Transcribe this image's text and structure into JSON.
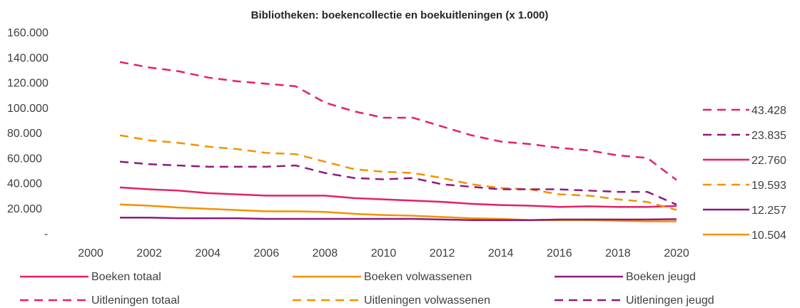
{
  "chart_data": {
    "type": "line",
    "title": "Bibliotheken:  boekencollectie  en boekuitleningen  (x 1.000)",
    "x": [
      2001,
      2002,
      2003,
      2004,
      2005,
      2006,
      2007,
      2008,
      2009,
      2010,
      2011,
      2012,
      2013,
      2014,
      2015,
      2016,
      2017,
      2018,
      2019,
      2020
    ],
    "xlim": [
      2000,
      2020
    ],
    "xticks": [
      2000,
      2002,
      2004,
      2006,
      2008,
      2010,
      2012,
      2014,
      2016,
      2018,
      2020
    ],
    "ylim": [
      0,
      160000
    ],
    "yticks": [
      {
        "value": 0,
        "label": "-"
      },
      {
        "value": 20000,
        "label": "20.000"
      },
      {
        "value": 40000,
        "label": "40.000"
      },
      {
        "value": 60000,
        "label": "60.000"
      },
      {
        "value": 80000,
        "label": "80.000"
      },
      {
        "value": 100000,
        "label": "100.000"
      },
      {
        "value": 120000,
        "label": "120.000"
      },
      {
        "value": 140000,
        "label": "140.000"
      },
      {
        "value": 160000,
        "label": "160.000"
      }
    ],
    "series": [
      {
        "name": "Boeken totaal",
        "color": "#e5206a",
        "dashed": false,
        "values": [
          37500,
          36000,
          35000,
          33000,
          32000,
          31000,
          31000,
          31000,
          29000,
          28000,
          27000,
          26000,
          24500,
          23500,
          23000,
          22000,
          22500,
          22000,
          22000,
          22760
        ],
        "value_labels": [
          null,
          null,
          null,
          null,
          null,
          null,
          null,
          null,
          null,
          null,
          null,
          null,
          null,
          null,
          null,
          null,
          null,
          null,
          null,
          "22.760"
        ]
      },
      {
        "name": "Boeken volwassenen",
        "color": "#f39200",
        "dashed": false,
        "values": [
          24000,
          23000,
          21500,
          20500,
          19500,
          18500,
          18500,
          18000,
          16500,
          15500,
          15000,
          14000,
          13000,
          12500,
          11500,
          11500,
          11500,
          11000,
          10500,
          10504
        ],
        "value_labels": [
          null,
          null,
          null,
          null,
          null,
          null,
          null,
          null,
          null,
          null,
          null,
          null,
          null,
          null,
          null,
          null,
          null,
          null,
          null,
          "10.504"
        ]
      },
      {
        "name": "Boeken jeugd",
        "color": "#8e1b7d",
        "dashed": false,
        "values": [
          13500,
          13500,
          13000,
          13000,
          13000,
          12500,
          12500,
          12500,
          12500,
          12500,
          12500,
          12000,
          11500,
          11500,
          11500,
          12000,
          12000,
          12000,
          12000,
          12257
        ],
        "value_labels": [
          null,
          null,
          null,
          null,
          null,
          null,
          null,
          null,
          null,
          null,
          null,
          null,
          null,
          null,
          null,
          null,
          null,
          null,
          null,
          "12.257"
        ]
      },
      {
        "name": "Uitleningen totaal",
        "color": "#e5206a",
        "dashed": true,
        "values": [
          137300,
          133000,
          130000,
          125000,
          122000,
          120000,
          118000,
          105000,
          98000,
          93000,
          93000,
          86000,
          79000,
          74000,
          72000,
          69000,
          67000,
          63000,
          61000,
          43428
        ],
        "value_labels": [
          null,
          null,
          null,
          null,
          null,
          null,
          null,
          null,
          null,
          null,
          null,
          null,
          null,
          null,
          null,
          null,
          null,
          null,
          null,
          "43.428"
        ]
      },
      {
        "name": "Uitleningen volwassenen",
        "color": "#f39200",
        "dashed": true,
        "values": [
          79000,
          75000,
          73000,
          70000,
          68000,
          65000,
          64000,
          58000,
          52000,
          50000,
          49000,
          45000,
          40000,
          37000,
          36000,
          32000,
          31000,
          28000,
          26000,
          19593
        ],
        "value_labels": [
          null,
          null,
          null,
          null,
          null,
          null,
          null,
          null,
          null,
          null,
          null,
          null,
          null,
          null,
          null,
          null,
          null,
          null,
          null,
          "19.593"
        ]
      },
      {
        "name": "Uitleningen jeugd",
        "color": "#8e1b7d",
        "dashed": true,
        "values": [
          58000,
          56000,
          55000,
          54000,
          54000,
          54000,
          55000,
          49000,
          45000,
          44000,
          45000,
          40000,
          38000,
          36000,
          36000,
          36000,
          35000,
          34000,
          34000,
          23835
        ],
        "value_labels": [
          null,
          null,
          null,
          null,
          null,
          null,
          null,
          null,
          null,
          null,
          null,
          null,
          null,
          null,
          null,
          null,
          null,
          null,
          null,
          "23.835"
        ]
      }
    ]
  }
}
